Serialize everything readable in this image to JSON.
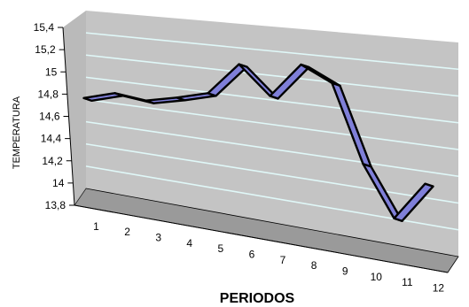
{
  "chart_data": {
    "type": "line",
    "x": [
      "1",
      "2",
      "3",
      "4",
      "5",
      "6",
      "7",
      "8",
      "9",
      "10",
      "11",
      "12"
    ],
    "series": [
      {
        "values": [
          14.6,
          14.68,
          14.65,
          14.71,
          14.78,
          15.05,
          14.82,
          15.1,
          14.98,
          14.38,
          14.0,
          14.3
        ]
      }
    ],
    "xlabel": "PERIODOS",
    "ylabel": "TEMPERATURA",
    "ylim": [
      13.8,
      15.4
    ],
    "yticks": [
      "13,8",
      "14",
      "14,2",
      "14,4",
      "14,6",
      "14,8",
      "15",
      "15,2",
      "15,4"
    ],
    "grid": true,
    "colors": {
      "wall": "#c4c4c4",
      "floor": "#9a9a9a",
      "side": "#8c8c8c",
      "gridline": "#e0f8f8",
      "line_face": "#7f7fd8",
      "line_edge": "#000000"
    }
  }
}
